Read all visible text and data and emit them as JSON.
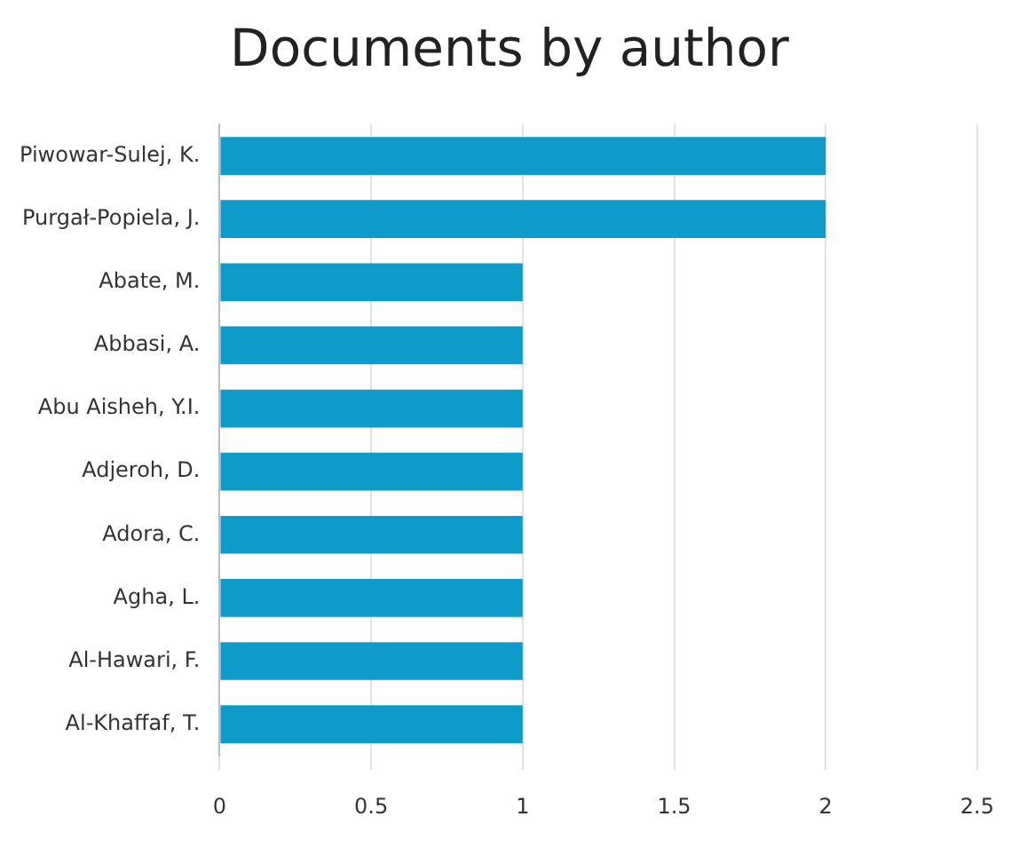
{
  "chart_data": {
    "type": "bar",
    "orientation": "horizontal",
    "title": "Documents by author",
    "categories": [
      "Piwowar-Sulej, K.",
      "Purgał-Popiela, J.",
      "Abate, M.",
      "Abbasi, A.",
      "Abu Aisheh, Y.I.",
      "Adjeroh, D.",
      "Adora, C.",
      "Agha, L.",
      "Al-Hawari, F.",
      "Al-Khaffaf, T."
    ],
    "values": [
      2,
      2,
      1,
      1,
      1,
      1,
      1,
      1,
      1,
      1
    ],
    "color": "#0f9bc9",
    "xlim": [
      0,
      2.5
    ],
    "xticks": [
      0,
      0.5,
      1,
      1.5,
      2,
      2.5
    ],
    "grid": "x"
  }
}
